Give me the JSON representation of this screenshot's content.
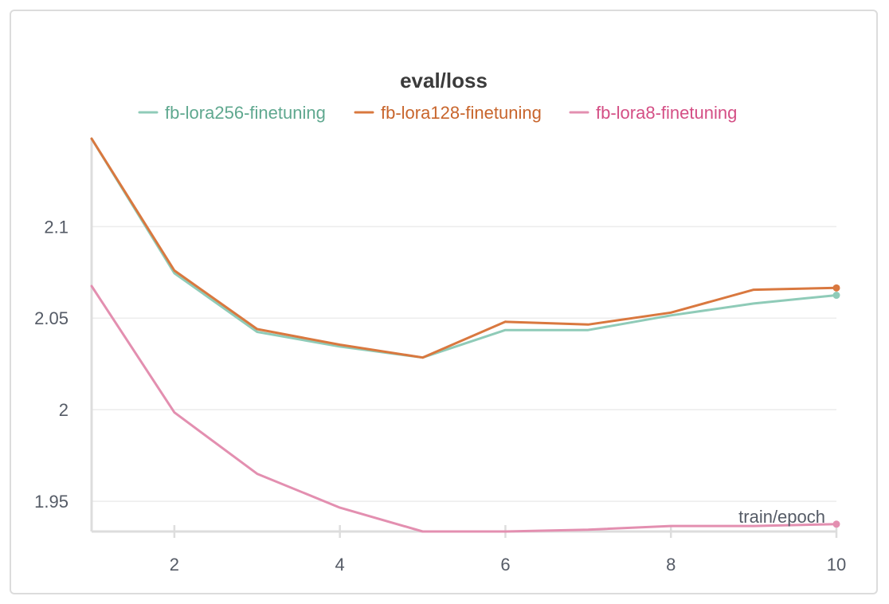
{
  "chart_data": {
    "type": "line",
    "title": "eval/loss",
    "xlabel": "train/epoch",
    "ylabel": "",
    "xlim": [
      1,
      10
    ],
    "ylim": [
      1.9335,
      2.148
    ],
    "xticks": [
      2,
      4,
      6,
      8,
      10
    ],
    "yticks": [
      1.95,
      2,
      2.05,
      2.1
    ],
    "ytick_labels": [
      "1.95",
      "2",
      "2.05",
      "2.1"
    ],
    "grid": "horizontal",
    "legend_position": "top-center",
    "x": [
      1,
      2,
      3,
      4,
      5,
      6,
      7,
      8,
      9,
      10
    ],
    "series": [
      {
        "name": "fb-lora256-finetuning",
        "color": "#8fcbb8",
        "text_color": "#5fa88f",
        "values": [
          2.148,
          2.0745,
          2.0425,
          2.0345,
          2.0285,
          2.0435,
          2.0435,
          2.0515,
          2.058,
          2.0625
        ]
      },
      {
        "name": "fb-lora128-finetuning",
        "color": "#d9783f",
        "text_color": "#c8652c",
        "values": [
          2.148,
          2.076,
          2.044,
          2.0355,
          2.0285,
          2.048,
          2.0465,
          2.053,
          2.0655,
          2.0665
        ]
      },
      {
        "name": "fb-lora8-finetuning",
        "color": "#e38fb0",
        "text_color": "#d44f85",
        "values": [
          2.0675,
          1.9985,
          1.965,
          1.9465,
          1.9335,
          1.9335,
          1.9345,
          1.9365,
          1.9365,
          1.9375
        ]
      }
    ]
  }
}
